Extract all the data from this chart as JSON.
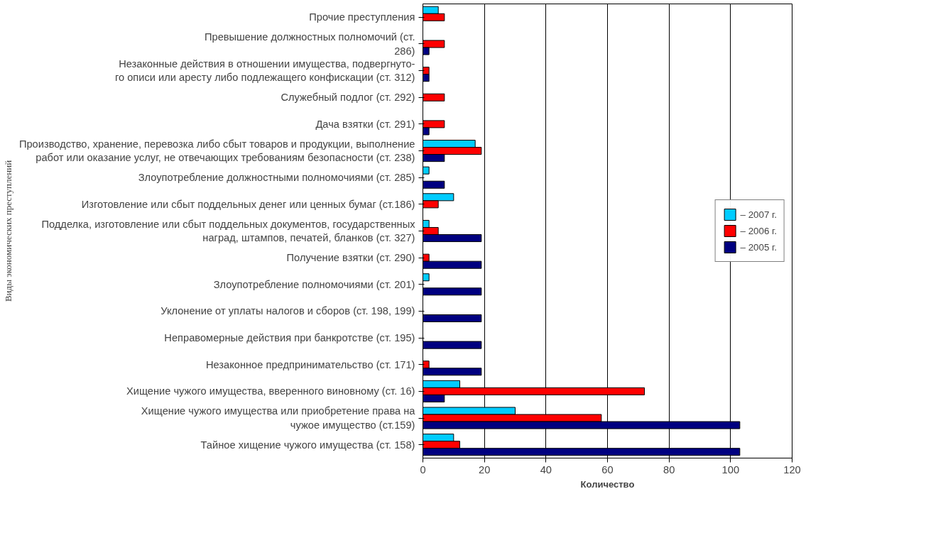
{
  "chart_data": {
    "type": "bar",
    "orientation": "horizontal",
    "xlabel": "Количество",
    "ylabel": "Виды экономических преступлений",
    "categories": [
      "Прочие преступления",
      "Превышение должностных полномочий (ст.\n286)",
      "Незаконные действия в отношении имущества, подвергнуто-\nго описи или аресту либо подлежащего конфискации (ст. 312)",
      "Служебный подлог (ст. 292)",
      "Дача взятки (ст. 291)",
      "Производство, хранение, перевозка либо сбыт товаров и продукции, выполнение\nработ или оказание услуг, не отвечающих требованиям безопасности (ст. 238)",
      "Злоупотребление должностными полномочиями (ст. 285)",
      "Изготовление или сбыт поддельных денег или ценных бумаг (ст.186)",
      "Подделка, изготовление или сбыт поддельных документов, государственных\nнаград, штампов, печатей, бланков (ст. 327)",
      "Получение взятки (ст. 290)",
      "Злоупотребление полномочиями (ст. 201)",
      "Уклонение от уплаты налогов и сборов (ст. 198, 199)",
      "Неправомерные действия при банкротстве (ст. 195)",
      "Незаконное предпринимательство (ст. 171)",
      "Хищение чужого имущества, вверенного виновному (ст. 16)",
      "Хищение чужого имущества или приобретение права на\nчужое имущество (ст.159)",
      "Тайное хищение чужого имущества (ст. 158)"
    ],
    "series": [
      {
        "name": "– 2007 г.",
        "color": "#00ccff",
        "values": [
          5,
          null,
          null,
          null,
          null,
          17,
          2,
          10,
          2,
          null,
          2,
          null,
          null,
          null,
          12,
          30,
          10
        ]
      },
      {
        "name": "– 2006 г.",
        "color": "#ff0000",
        "values": [
          7,
          7,
          2,
          7,
          7,
          19,
          null,
          5,
          5,
          2,
          null,
          null,
          null,
          2,
          72,
          58,
          12
        ]
      },
      {
        "name": "– 2005 г.",
        "color": "#000080",
        "values": [
          null,
          2,
          2,
          null,
          2,
          7,
          7,
          null,
          19,
          19,
          19,
          19,
          19,
          19,
          7,
          103,
          103
        ]
      }
    ],
    "xlim": [
      0,
      120
    ],
    "xticks": [
      0,
      20,
      40,
      60,
      80,
      100,
      120
    ],
    "grid": "x",
    "legend": "right"
  }
}
